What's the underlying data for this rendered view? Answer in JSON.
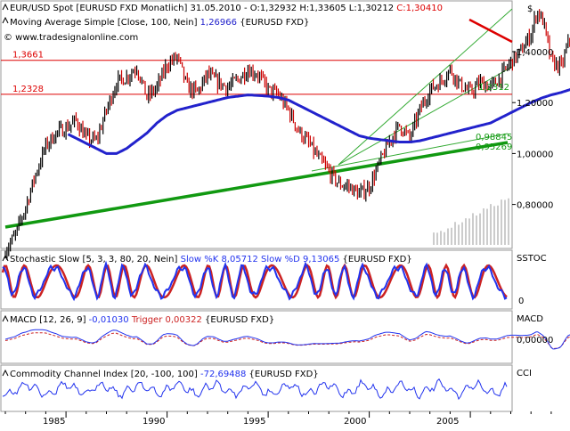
{
  "panels": {
    "main": {
      "header_line1_prefix": "EUR/USD Spot [EURUSD FXD  Monatlich] 31.05.2010 - O:1,32932 H:1,33605 L:1,30212",
      "header_line1_close": "C:1,30410",
      "header_line2_prefix": "Moving Average Simple [Close, 100, Nein]",
      "header_line2_value": "1,26966",
      "header_line2_suffix": "{EURUSD FXD}",
      "copyright": "© www.tradesignalonline.com",
      "currency_label": "$",
      "y_ticks": [
        "1,40000",
        "1,20000",
        "1,00000",
        "0,80000"
      ],
      "hline_labels": [
        "1,3661",
        "1,2328"
      ],
      "trend_labels": [
        "1,2312",
        "0,98845",
        "0,95269"
      ]
    },
    "stoch": {
      "header_prefix": "Stochastic Slow [5, 3, 3, 80, 20, Nein]",
      "header_k": "Slow %K 8,05712",
      "header_d": "Slow %D 9,13065",
      "header_suffix": "{EURUSD FXD}",
      "right_label": "SSTOC",
      "tick_zero": "0"
    },
    "macd": {
      "header_prefix": "MACD [12, 26, 9]",
      "header_value": "-0,01030",
      "header_trigger": "Trigger 0,00322",
      "header_suffix": "{EURUSD FXD}",
      "right_label": "MACD",
      "tick_zero": "0,00000"
    },
    "cci": {
      "header_prefix": "Commodity Channel Index [20, -100, 100]",
      "header_value": "-72,69488",
      "header_suffix": "{EURUSD FXD}",
      "right_label": "CCI"
    }
  },
  "x_axis": {
    "labels": [
      "1985",
      "1990",
      "1995",
      "2000",
      "2005"
    ]
  },
  "colors": {
    "price_up": "#000000",
    "price_down": "#cc0000",
    "moving_average": "#2222cc",
    "support_trendline": "#119911",
    "thin_trendline": "#33aa33",
    "resistance_line": "#dd0000",
    "horizontal_levels": "#dd0000",
    "stoch_k": "#2233ee",
    "stoch_d": "#cc2222",
    "volume": "#999999"
  },
  "chart_data": [
    {
      "type": "line",
      "title": "EUR/USD Spot [EURUSD FXD  Monatlich]",
      "x": [
        1982.0,
        1982.5,
        1983.0,
        1983.5,
        1984.0,
        1984.5,
        1985.0,
        1985.5,
        1986.0,
        1986.5,
        1987.0,
        1987.5,
        1988.0,
        1988.5,
        1989.0,
        1989.5,
        1990.0,
        1990.5,
        1991.0,
        1991.5,
        1992.0,
        1992.5,
        1993.0,
        1993.5,
        1994.0,
        1994.5,
        1995.0,
        1995.5,
        1996.0,
        1996.5,
        1997.0,
        1997.5,
        1998.0,
        1998.5,
        1999.0,
        1999.5,
        2000.0,
        2000.5,
        2001.0,
        2001.5,
        2002.0,
        2002.5,
        2003.0,
        2003.5,
        2004.0,
        2004.5,
        2005.0,
        2005.5,
        2006.0,
        2006.5,
        2007.0,
        2007.5,
        2008.0,
        2008.3,
        2008.6,
        2009.0,
        2009.5,
        2009.9,
        2010.2,
        2010.4
      ],
      "series": [
        {
          "name": "EUR/USD Spot",
          "values": [
            0.62,
            0.68,
            0.79,
            0.92,
            1.03,
            1.08,
            1.1,
            1.13,
            1.06,
            1.05,
            1.17,
            1.28,
            1.3,
            1.34,
            1.22,
            1.26,
            1.35,
            1.38,
            1.26,
            1.24,
            1.31,
            1.28,
            1.26,
            1.29,
            1.33,
            1.31,
            1.25,
            1.23,
            1.17,
            1.09,
            1.04,
            0.98,
            0.93,
            0.88,
            0.87,
            0.84,
            0.87,
            0.96,
            1.05,
            1.11,
            1.06,
            1.17,
            1.25,
            1.28,
            1.33,
            1.27,
            1.24,
            1.28,
            1.26,
            1.3,
            1.36,
            1.4,
            1.47,
            1.56,
            1.52,
            1.36,
            1.34,
            1.45,
            1.38,
            1.3
          ]
        },
        {
          "name": "Moving Average Simple [Close, 100, Nein]",
          "values": [
            null,
            null,
            null,
            null,
            null,
            null,
            1.08,
            1.06,
            1.04,
            1.02,
            1.0,
            1.0,
            1.02,
            1.05,
            1.08,
            1.12,
            1.15,
            1.17,
            1.18,
            1.19,
            1.2,
            1.21,
            1.22,
            1.225,
            1.23,
            1.228,
            1.225,
            1.22,
            1.21,
            1.19,
            1.17,
            1.15,
            1.13,
            1.11,
            1.09,
            1.07,
            1.06,
            1.055,
            1.05,
            1.045,
            1.045,
            1.05,
            1.06,
            1.07,
            1.08,
            1.09,
            1.1,
            1.11,
            1.12,
            1.14,
            1.16,
            1.18,
            1.2,
            1.21,
            1.22,
            1.23,
            1.24,
            1.25,
            1.26,
            1.27
          ]
        }
      ],
      "ylim": [
        0.6,
        1.6
      ],
      "horizontal_levels": [
        1.3661,
        1.2328
      ],
      "trendline_labels": [
        1.2312,
        0.98845,
        0.95269
      ],
      "legend_position": "top-left"
    },
    {
      "type": "line",
      "title": "Stochastic Slow [5, 3, 3, 80, 20, Nein]",
      "series": [
        {
          "name": "Slow %K",
          "last": 8.05712
        },
        {
          "name": "Slow %D",
          "last": 9.13065
        }
      ],
      "ylim": [
        0,
        100
      ]
    },
    {
      "type": "line",
      "title": "MACD [12, 26, 9]",
      "series": [
        {
          "name": "MACD",
          "last": -0.0103
        },
        {
          "name": "Trigger",
          "last": 0.00322
        }
      ]
    },
    {
      "type": "line",
      "title": "Commodity Channel Index [20, -100, 100]",
      "series": [
        {
          "name": "CCI",
          "last": -72.69488
        }
      ]
    }
  ]
}
